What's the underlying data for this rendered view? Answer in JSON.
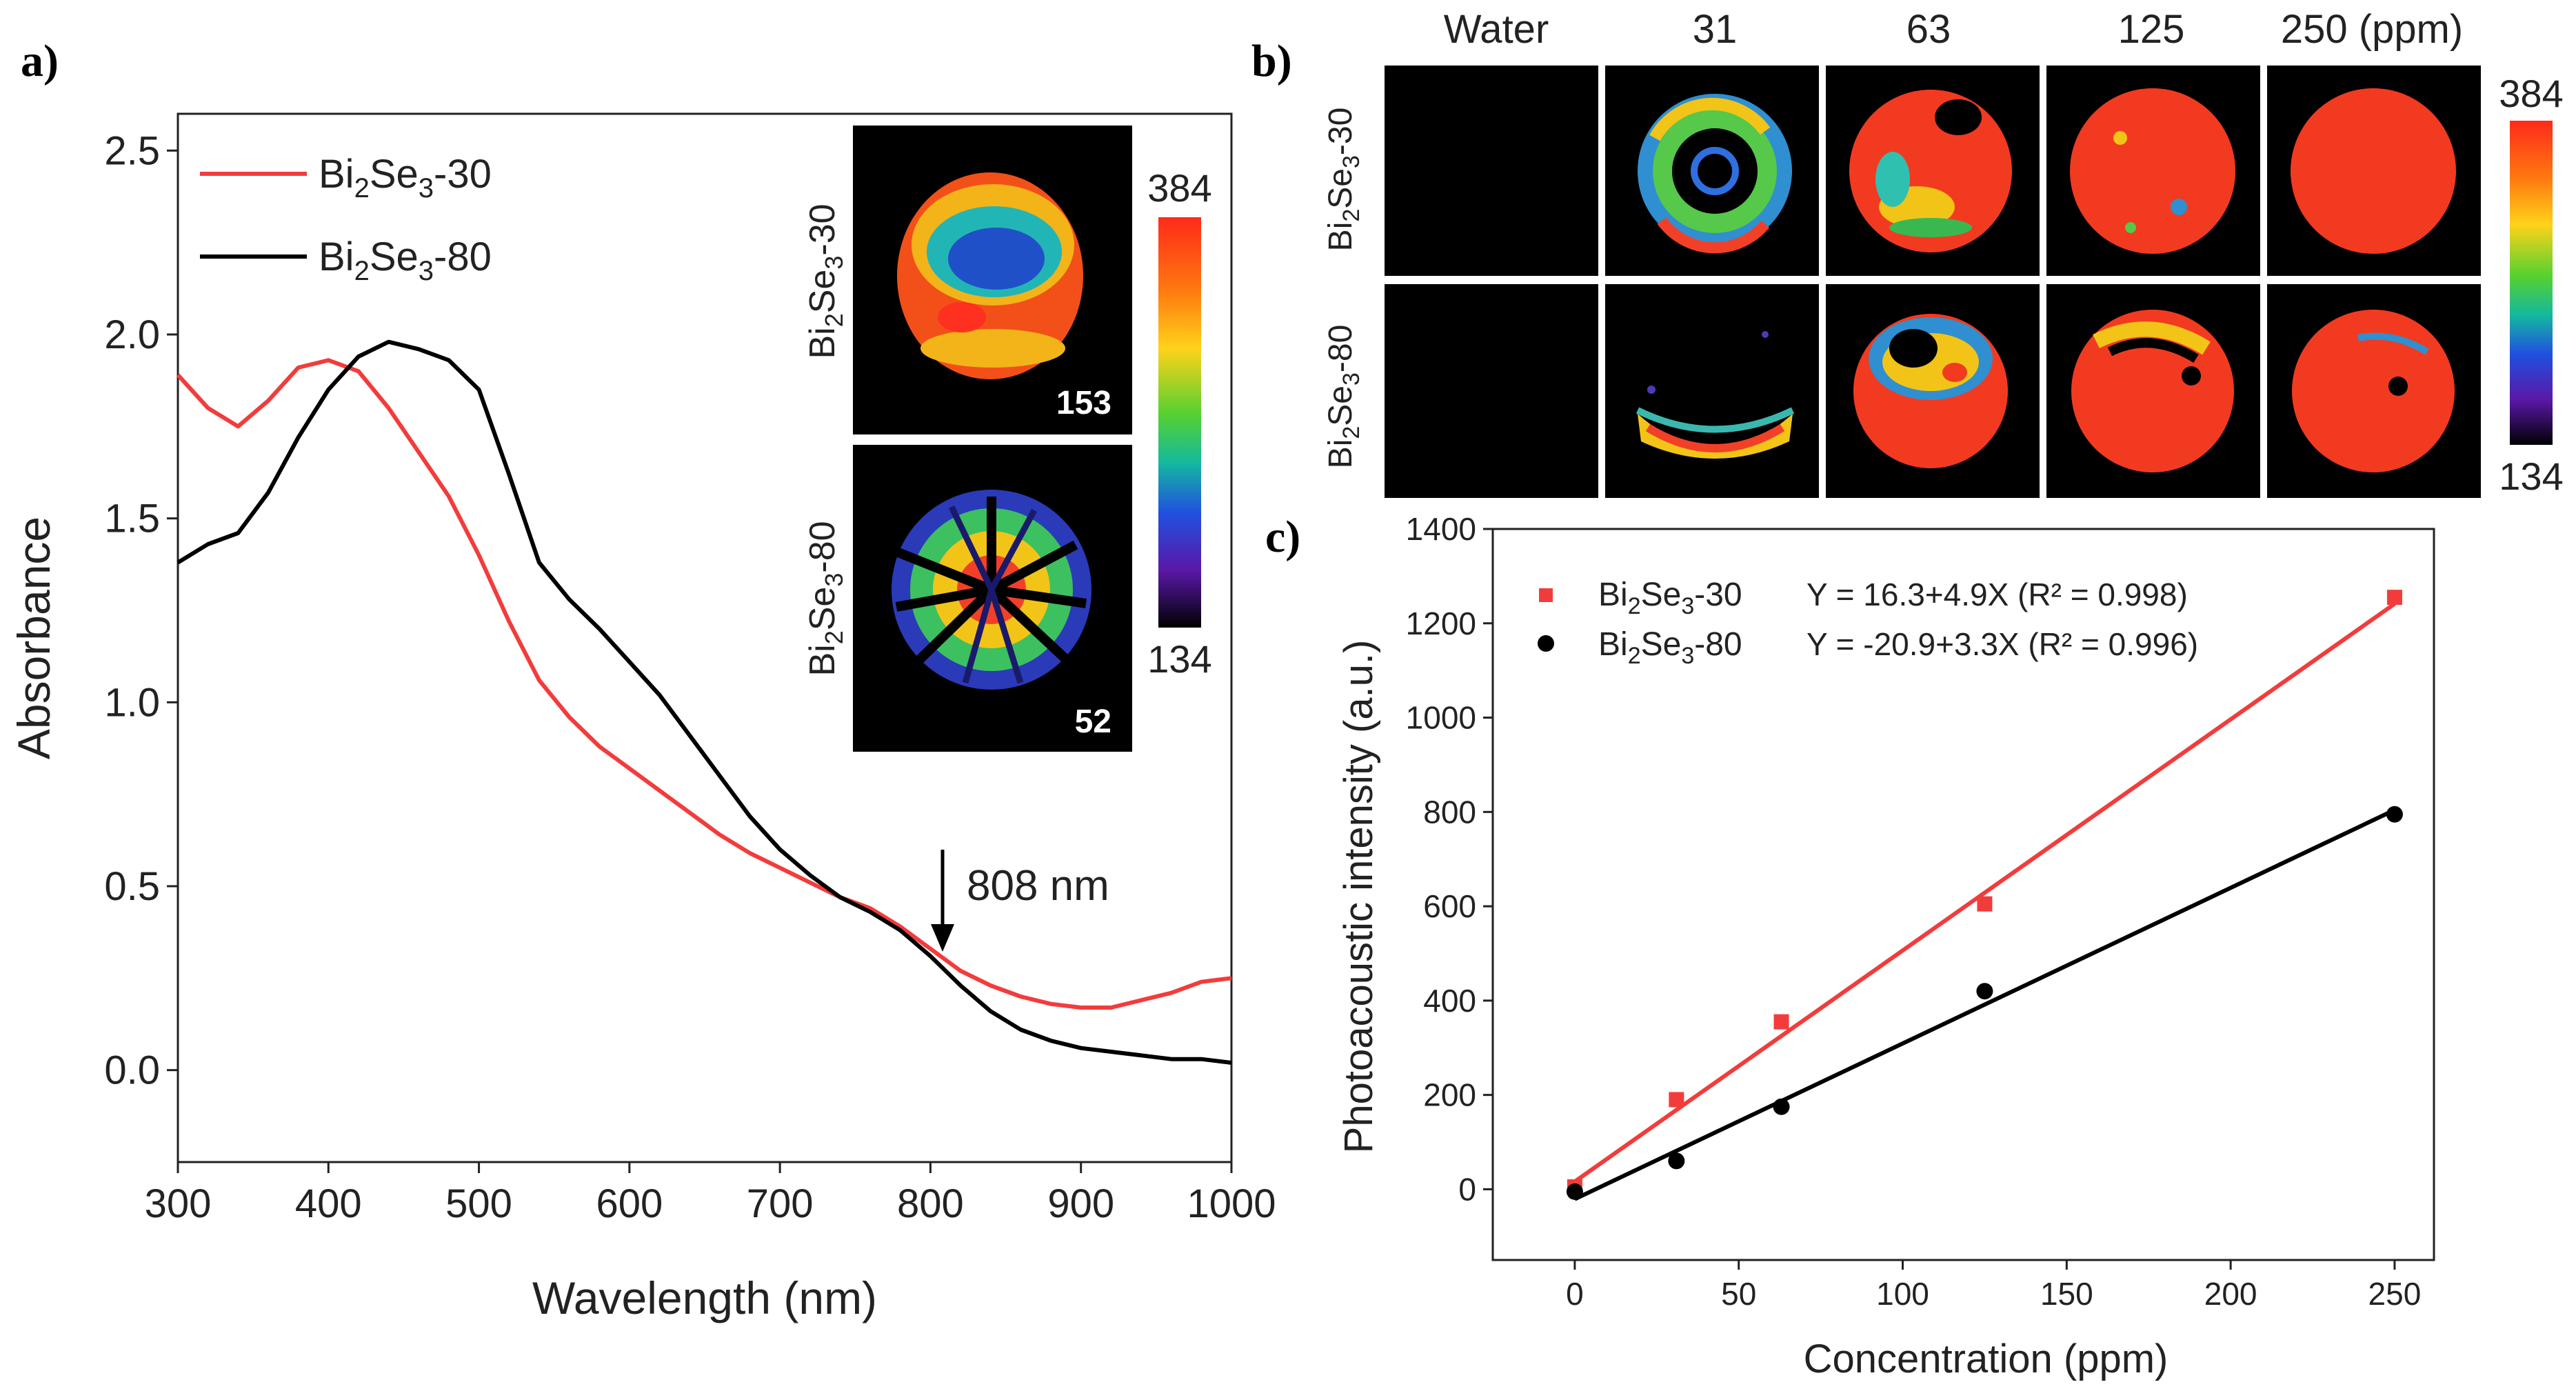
{
  "colors": {
    "bi2se3_30": "#f23c3c",
    "bi2se3_80": "#000000",
    "axis": "#222222",
    "image_bg": "#000000"
  },
  "panel_labels": {
    "a": "a)",
    "b": "b)",
    "c": "c)"
  },
  "colorbar": {
    "max": "384",
    "min": "134"
  },
  "panel_a": {
    "inset": {
      "images": [
        {
          "label_base": "Bi",
          "label_sub1": "2",
          "label_mid": "Se",
          "label_sub2": "3",
          "label_tail": "-30",
          "value": "153",
          "style": "dense"
        },
        {
          "label_base": "Bi",
          "label_sub1": "2",
          "label_mid": "Se",
          "label_sub2": "3",
          "label_tail": "-80",
          "value": "52",
          "style": "sparse"
        }
      ]
    },
    "annotation": {
      "text": "808 nm",
      "x": 808,
      "y": 0.3
    }
  },
  "panel_b": {
    "column_headers": [
      "Water",
      "31",
      "63",
      "125",
      "250 (ppm)"
    ],
    "row_labels": [
      {
        "base": "Bi",
        "sub1": "2",
        "mid": "Se",
        "sub2": "3",
        "tail": "-30"
      },
      {
        "base": "Bi",
        "sub1": "2",
        "mid": "Se",
        "sub2": "3",
        "tail": "-80"
      }
    ]
  },
  "chart_data": [
    {
      "id": "a",
      "type": "line",
      "title": "",
      "xlabel": "Wavelength (nm)",
      "ylabel": "Absorbance",
      "xlim": [
        300,
        1000
      ],
      "ylim": [
        -0.25,
        2.6
      ],
      "xticks": [
        300,
        400,
        500,
        600,
        700,
        800,
        900,
        1000
      ],
      "yticks": [
        0.0,
        0.5,
        1.0,
        1.5,
        2.0,
        2.5
      ],
      "ytick_labels": [
        "0.0",
        "0.5",
        "1.0",
        "1.5",
        "2.0",
        "2.5"
      ],
      "legend_position": "top-left",
      "series": [
        {
          "name": "Bi2Se3-30",
          "legend": {
            "base": "Bi",
            "sub1": "2",
            "mid": "Se",
            "sub2": "3",
            "tail": "-30"
          },
          "color": "#f23c3c",
          "x": [
            300,
            320,
            340,
            360,
            380,
            400,
            420,
            440,
            460,
            480,
            500,
            520,
            540,
            560,
            580,
            600,
            620,
            640,
            660,
            680,
            700,
            720,
            740,
            760,
            780,
            800,
            820,
            840,
            860,
            880,
            900,
            920,
            940,
            960,
            980,
            1000
          ],
          "y": [
            1.89,
            1.8,
            1.75,
            1.82,
            1.91,
            1.93,
            1.9,
            1.8,
            1.68,
            1.56,
            1.4,
            1.22,
            1.06,
            0.96,
            0.88,
            0.82,
            0.76,
            0.7,
            0.64,
            0.59,
            0.55,
            0.51,
            0.47,
            0.44,
            0.39,
            0.33,
            0.27,
            0.23,
            0.2,
            0.18,
            0.17,
            0.17,
            0.19,
            0.21,
            0.24,
            0.25
          ]
        },
        {
          "name": "Bi2Se3-80",
          "legend": {
            "base": "Bi",
            "sub1": "2",
            "mid": "Se",
            "sub2": "3",
            "tail": "-80"
          },
          "color": "#000000",
          "x": [
            300,
            320,
            340,
            360,
            380,
            400,
            420,
            440,
            460,
            480,
            500,
            520,
            540,
            560,
            580,
            600,
            620,
            640,
            660,
            680,
            700,
            720,
            740,
            760,
            780,
            800,
            820,
            840,
            860,
            880,
            900,
            920,
            940,
            960,
            980,
            1000
          ],
          "y": [
            1.38,
            1.43,
            1.46,
            1.57,
            1.72,
            1.85,
            1.94,
            1.98,
            1.96,
            1.93,
            1.85,
            1.62,
            1.38,
            1.28,
            1.2,
            1.11,
            1.02,
            0.91,
            0.8,
            0.69,
            0.6,
            0.53,
            0.47,
            0.43,
            0.38,
            0.31,
            0.23,
            0.16,
            0.11,
            0.08,
            0.06,
            0.05,
            0.04,
            0.03,
            0.03,
            0.02
          ]
        }
      ]
    },
    {
      "id": "c",
      "type": "scatter",
      "title": "",
      "xlabel": "Concentration (ppm)",
      "ylabel": "Photoacoustic intensity (a.u.)",
      "xlim": [
        -25,
        262
      ],
      "ylim": [
        -150,
        1400
      ],
      "xticks": [
        0,
        50,
        100,
        150,
        200,
        250
      ],
      "yticks": [
        0,
        200,
        400,
        600,
        800,
        1000,
        1200,
        1400
      ],
      "legend_position": "top-left",
      "series": [
        {
          "name": "Bi2Se3-30",
          "legend": {
            "base": "Bi",
            "sub1": "2",
            "mid": "Se",
            "sub2": "3",
            "tail": "-30"
          },
          "color": "#f23c3c",
          "marker": "square",
          "x": [
            0,
            31,
            63,
            125,
            250
          ],
          "y": [
            5,
            190,
            355,
            605,
            1255
          ],
          "fit": {
            "intercept": 16.3,
            "slope": 4.9
          },
          "equation": "Y = 16.3+4.9X (R² = 0.998)"
        },
        {
          "name": "Bi2Se3-80",
          "legend": {
            "base": "Bi",
            "sub1": "2",
            "mid": "Se",
            "sub2": "3",
            "tail": "-80"
          },
          "color": "#000000",
          "marker": "circle",
          "x": [
            0,
            31,
            63,
            125,
            250
          ],
          "y": [
            -5,
            60,
            175,
            420,
            795
          ],
          "fit": {
            "intercept": -20.9,
            "slope": 3.3
          },
          "equation": "Y = -20.9+3.3X (R² = 0.996)"
        }
      ]
    }
  ]
}
